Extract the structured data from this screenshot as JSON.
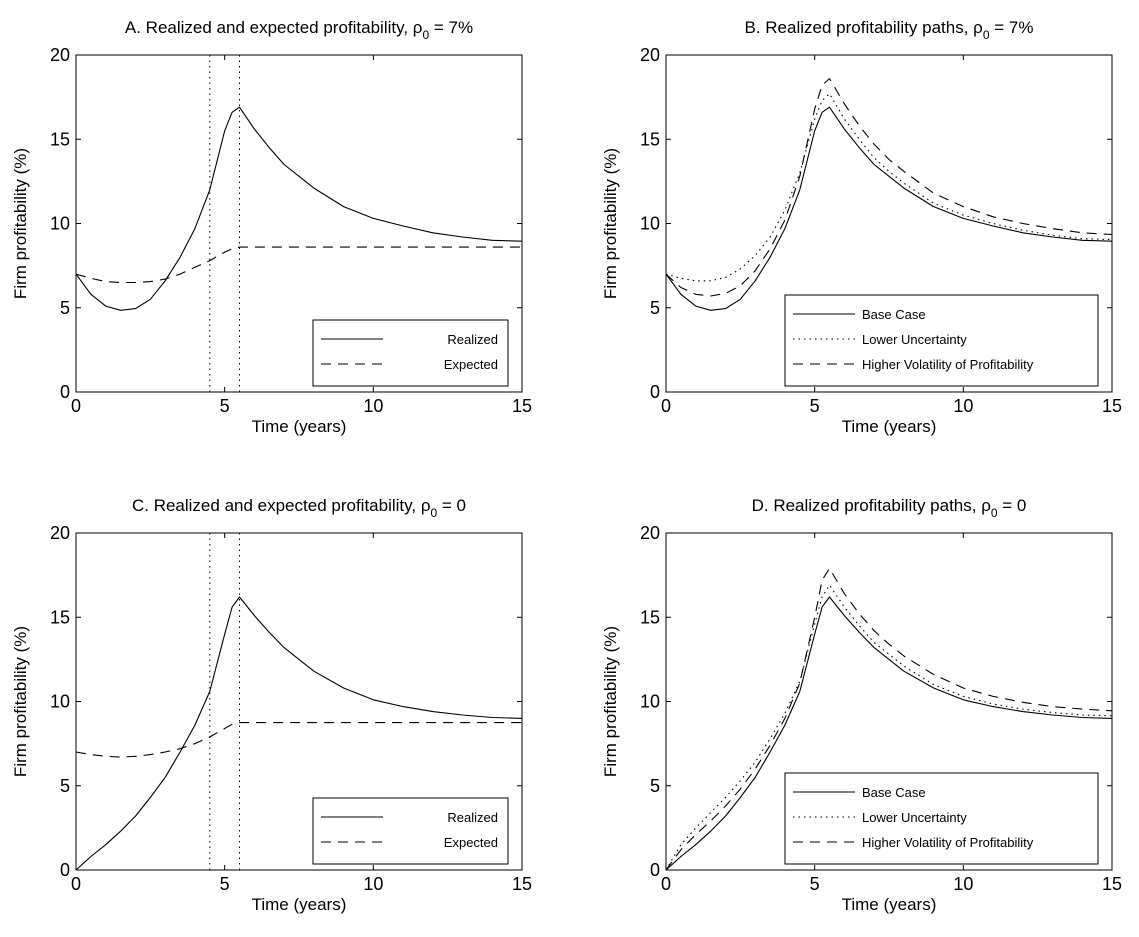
{
  "chart_data": [
    {
      "id": "A",
      "type": "line",
      "title": "A.  Realized and expected profitability, ",
      "title_symbol": "ρ",
      "title_subscript": "0",
      "title_tail": " = 7%",
      "xlabel": "Time (years)",
      "ylabel": "Firm profitability (%)",
      "xlim": [
        0,
        15
      ],
      "ylim": [
        0,
        20
      ],
      "xticks": [
        "0",
        "5",
        "10",
        "15"
      ],
      "yticks": [
        "0",
        "5",
        "10",
        "15",
        "20"
      ],
      "vlines": [
        4.5,
        5.5
      ],
      "grid": false,
      "legend_position": "bottom-right",
      "x": [
        0,
        0.5,
        1,
        1.5,
        2,
        2.5,
        3,
        3.5,
        4,
        4.5,
        5,
        5.25,
        5.5,
        6,
        6.5,
        7,
        7.5,
        8,
        9,
        10,
        11,
        12,
        13,
        14,
        15
      ],
      "series": [
        {
          "name": "Realized",
          "style": "solid",
          "values": [
            7.0,
            5.8,
            5.1,
            4.85,
            4.95,
            5.5,
            6.6,
            8.0,
            9.7,
            12.0,
            15.5,
            16.6,
            16.9,
            15.6,
            14.5,
            13.5,
            12.8,
            12.1,
            11.0,
            10.3,
            9.85,
            9.45,
            9.2,
            9.0,
            8.95
          ]
        },
        {
          "name": "Expected",
          "style": "dashed",
          "values": [
            7.0,
            6.75,
            6.55,
            6.5,
            6.5,
            6.55,
            6.7,
            7.0,
            7.4,
            7.8,
            8.3,
            8.5,
            8.6,
            8.6,
            8.6,
            8.6,
            8.6,
            8.6,
            8.6,
            8.6,
            8.6,
            8.6,
            8.6,
            8.6,
            8.6
          ]
        }
      ]
    },
    {
      "id": "B",
      "type": "line",
      "title": "B.  Realized profitability paths, ",
      "title_symbol": "ρ",
      "title_subscript": "0",
      "title_tail": " = 7%",
      "xlabel": "Time (years)",
      "ylabel": "Firm profitability (%)",
      "xlim": [
        0,
        15
      ],
      "ylim": [
        0,
        20
      ],
      "xticks": [
        "0",
        "5",
        "10",
        "15"
      ],
      "yticks": [
        "0",
        "5",
        "10",
        "15",
        "20"
      ],
      "vlines": [],
      "grid": false,
      "legend_position": "bottom-right",
      "x": [
        0,
        0.5,
        1,
        1.5,
        2,
        2.5,
        3,
        3.5,
        4,
        4.5,
        5,
        5.25,
        5.5,
        6,
        6.5,
        7,
        7.5,
        8,
        9,
        10,
        11,
        12,
        13,
        14,
        15
      ],
      "series": [
        {
          "name": "Base Case",
          "style": "solid",
          "values": [
            7.0,
            5.8,
            5.1,
            4.85,
            4.95,
            5.5,
            6.6,
            8.0,
            9.7,
            12.0,
            15.5,
            16.6,
            16.9,
            15.6,
            14.5,
            13.5,
            12.8,
            12.1,
            11.0,
            10.3,
            9.85,
            9.45,
            9.2,
            9.0,
            8.95
          ]
        },
        {
          "name": "Lower Uncertainty",
          "style": "dotted",
          "values": [
            7.0,
            6.75,
            6.6,
            6.6,
            6.8,
            7.3,
            8.1,
            9.2,
            10.8,
            13.0,
            16.2,
            17.3,
            17.7,
            16.2,
            15.0,
            13.9,
            13.1,
            12.4,
            11.2,
            10.5,
            10.0,
            9.6,
            9.3,
            9.1,
            9.05
          ]
        },
        {
          "name": "Higher Volatility of Profitability",
          "style": "dashed",
          "values": [
            7.0,
            6.2,
            5.8,
            5.7,
            5.85,
            6.3,
            7.2,
            8.5,
            10.2,
            12.8,
            16.8,
            18.2,
            18.6,
            17.1,
            15.8,
            14.7,
            13.8,
            13.1,
            11.8,
            11.0,
            10.4,
            10.0,
            9.7,
            9.45,
            9.35
          ]
        }
      ]
    },
    {
      "id": "C",
      "type": "line",
      "title": "C.  Realized and expected profitability, ",
      "title_symbol": "ρ",
      "title_subscript": "0",
      "title_tail": " = 0",
      "xlabel": "Time (years)",
      "ylabel": "Firm profitability (%)",
      "xlim": [
        0,
        15
      ],
      "ylim": [
        0,
        20
      ],
      "xticks": [
        "0",
        "5",
        "10",
        "15"
      ],
      "yticks": [
        "0",
        "5",
        "10",
        "15",
        "20"
      ],
      "vlines": [
        4.5,
        5.5
      ],
      "grid": false,
      "legend_position": "bottom-right",
      "x": [
        0,
        0.5,
        1,
        1.5,
        2,
        2.5,
        3,
        3.5,
        4,
        4.5,
        5,
        5.25,
        5.5,
        6,
        6.5,
        7,
        7.5,
        8,
        9,
        10,
        11,
        12,
        13,
        14,
        15
      ],
      "series": [
        {
          "name": "Realized",
          "style": "solid",
          "values": [
            0.0,
            0.8,
            1.5,
            2.3,
            3.2,
            4.3,
            5.5,
            7.0,
            8.6,
            10.6,
            14.0,
            15.6,
            16.2,
            15.1,
            14.1,
            13.2,
            12.5,
            11.8,
            10.8,
            10.1,
            9.7,
            9.4,
            9.2,
            9.05,
            9.0
          ]
        },
        {
          "name": "Expected",
          "style": "dashed",
          "values": [
            7.0,
            6.85,
            6.75,
            6.7,
            6.75,
            6.85,
            7.0,
            7.2,
            7.5,
            7.9,
            8.4,
            8.65,
            8.75,
            8.75,
            8.75,
            8.75,
            8.75,
            8.75,
            8.75,
            8.75,
            8.75,
            8.75,
            8.75,
            8.75,
            8.75
          ]
        }
      ]
    },
    {
      "id": "D",
      "type": "line",
      "title": "D.  Realized profitability paths, ",
      "title_symbol": "ρ",
      "title_subscript": "0",
      "title_tail": " = 0",
      "xlabel": "Time (years)",
      "ylabel": "Firm profitability (%)",
      "xlim": [
        0,
        15
      ],
      "ylim": [
        0,
        20
      ],
      "xticks": [
        "0",
        "5",
        "10",
        "15"
      ],
      "yticks": [
        "0",
        "5",
        "10",
        "15",
        "20"
      ],
      "vlines": [],
      "grid": false,
      "legend_position": "bottom-right",
      "x": [
        0,
        0.5,
        1,
        1.5,
        2,
        2.5,
        3,
        3.5,
        4,
        4.5,
        5,
        5.25,
        5.5,
        6,
        6.5,
        7,
        7.5,
        8,
        9,
        10,
        11,
        12,
        13,
        14,
        15
      ],
      "series": [
        {
          "name": "Base Case",
          "style": "solid",
          "values": [
            0.0,
            0.8,
            1.5,
            2.3,
            3.2,
            4.3,
            5.5,
            7.0,
            8.6,
            10.6,
            14.0,
            15.6,
            16.2,
            15.1,
            14.1,
            13.2,
            12.5,
            11.8,
            10.8,
            10.1,
            9.7,
            9.4,
            9.2,
            9.05,
            9.0
          ]
        },
        {
          "name": "Lower Uncertainty",
          "style": "dotted",
          "values": [
            0.0,
            1.5,
            2.5,
            3.4,
            4.3,
            5.3,
            6.4,
            7.8,
            9.3,
            11.2,
            14.6,
            16.2,
            16.9,
            15.6,
            14.5,
            13.5,
            12.8,
            12.1,
            11.0,
            10.3,
            9.85,
            9.55,
            9.35,
            9.2,
            9.15
          ]
        },
        {
          "name": "Higher Volatility of Profitability",
          "style": "dashed",
          "values": [
            0.0,
            1.2,
            2.1,
            2.9,
            3.8,
            4.8,
            6.0,
            7.4,
            9.0,
            11.1,
            15.0,
            17.2,
            17.9,
            16.4,
            15.2,
            14.2,
            13.4,
            12.7,
            11.6,
            10.8,
            10.3,
            9.95,
            9.7,
            9.55,
            9.45
          ]
        }
      ]
    }
  ]
}
